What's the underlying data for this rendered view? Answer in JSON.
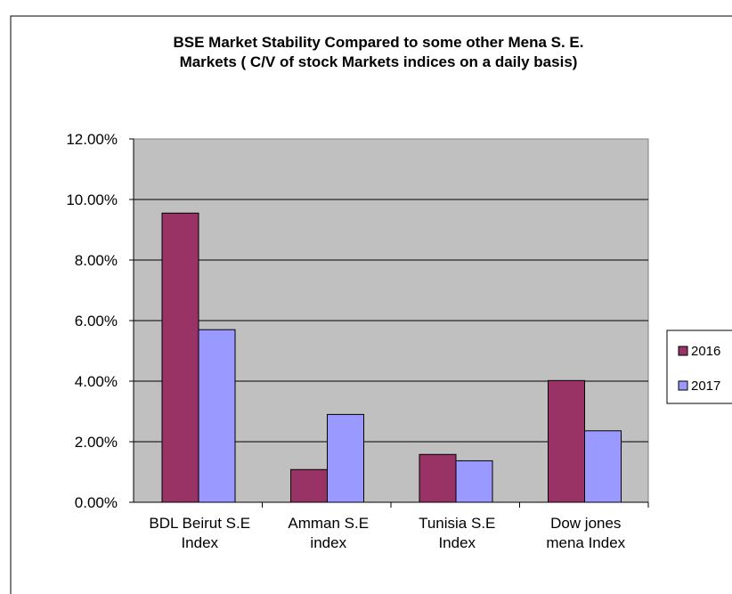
{
  "chart_data": {
    "type": "bar",
    "title_lines": [
      "BSE Market Stability Compared to some other Mena S. E.",
      "Markets ( C/V  of stock Markets indices on a daily basis)"
    ],
    "categories": [
      [
        "BDL Beirut S.E",
        "Index"
      ],
      [
        "Amman S.E",
        "index"
      ],
      [
        "Tunisia S.E",
        "Index"
      ],
      [
        "Dow jones",
        "mena Index"
      ]
    ],
    "series": [
      {
        "name": "2016",
        "color": "#993366",
        "values": [
          9.55,
          1.08,
          1.58,
          4.02
        ]
      },
      {
        "name": "2017",
        "color": "#9999ff",
        "values": [
          5.7,
          2.9,
          1.37,
          2.36
        ]
      }
    ],
    "yticks": [
      "0.00%",
      "2.00%",
      "4.00%",
      "6.00%",
      "8.00%",
      "10.00%",
      "12.00%"
    ],
    "ylim": [
      0,
      12
    ],
    "grid": true,
    "plot_background": "#c0c0c0",
    "legend_position": "right"
  }
}
